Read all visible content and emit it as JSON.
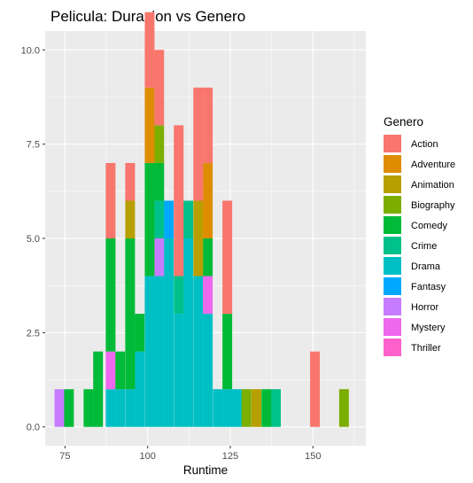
{
  "chart_data": {
    "type": "bar",
    "subtype": "stacked-histogram",
    "title": "Pelicula: Duracion vs Genero",
    "xlabel": "Runtime",
    "ylabel": "",
    "xlim": [
      69,
      166
    ],
    "ylim": [
      -0.5,
      10.5
    ],
    "binwidth": 2.94,
    "x_ticks": [
      75,
      100,
      125,
      150
    ],
    "y_ticks": [
      0,
      2.5,
      5,
      7.5,
      10
    ],
    "y_tick_labels": [
      "0.0",
      "2.5",
      "5.0",
      "7.5",
      "10.0"
    ],
    "grid": true,
    "legend_position": "right",
    "legend_title": "Genero",
    "stack_order": [
      "Drama",
      "Horror",
      "Thriller",
      "Mystery",
      "Fantasy",
      "Crime",
      "Comedy",
      "Biography",
      "Animation",
      "Adventure",
      "Action"
    ],
    "series": [
      {
        "name": "Action",
        "color": "#F8766D",
        "bins": [
          {
            "x": 88.8,
            "count": 2
          },
          {
            "x": 94.7,
            "count": 1
          },
          {
            "x": 100.6,
            "count": 2
          },
          {
            "x": 103.5,
            "count": 2
          },
          {
            "x": 109.4,
            "count": 4
          },
          {
            "x": 115.3,
            "count": 3
          },
          {
            "x": 118.2,
            "count": 2
          },
          {
            "x": 124.1,
            "count": 3
          },
          {
            "x": 150.6,
            "count": 2
          }
        ]
      },
      {
        "name": "Adventure",
        "color": "#DE8C00",
        "bins": [
          {
            "x": 100.6,
            "count": 2
          },
          {
            "x": 118.2,
            "count": 2
          }
        ]
      },
      {
        "name": "Animation",
        "color": "#B79F00",
        "bins": [
          {
            "x": 94.7,
            "count": 1
          },
          {
            "x": 115.3,
            "count": 2
          },
          {
            "x": 132.9,
            "count": 1
          }
        ]
      },
      {
        "name": "Biography",
        "color": "#7CAE00",
        "bins": [
          {
            "x": 103.5,
            "count": 1
          },
          {
            "x": 129.9,
            "count": 1
          },
          {
            "x": 159.4,
            "count": 1
          }
        ]
      },
      {
        "name": "Comedy",
        "color": "#00BA38",
        "bins": [
          {
            "x": 76.2,
            "count": 1
          },
          {
            "x": 82.1,
            "count": 1
          },
          {
            "x": 85.0,
            "count": 2
          },
          {
            "x": 88.8,
            "count": 3
          },
          {
            "x": 91.7,
            "count": 1
          },
          {
            "x": 94.7,
            "count": 4
          },
          {
            "x": 97.6,
            "count": 1
          },
          {
            "x": 100.6,
            "count": 3
          },
          {
            "x": 103.5,
            "count": 1
          },
          {
            "x": 118.2,
            "count": 1
          },
          {
            "x": 124.1,
            "count": 2
          },
          {
            "x": 135.9,
            "count": 1
          }
        ]
      },
      {
        "name": "Crime",
        "color": "#00C08B",
        "bins": [
          {
            "x": 103.5,
            "count": 1
          },
          {
            "x": 109.4,
            "count": 1
          },
          {
            "x": 112.3,
            "count": 1
          },
          {
            "x": 138.8,
            "count": 1
          }
        ]
      },
      {
        "name": "Drama",
        "color": "#00BFC4",
        "bins": [
          {
            "x": 88.8,
            "count": 1
          },
          {
            "x": 91.7,
            "count": 1
          },
          {
            "x": 94.7,
            "count": 1
          },
          {
            "x": 97.6,
            "count": 2
          },
          {
            "x": 100.6,
            "count": 4
          },
          {
            "x": 103.5,
            "count": 4
          },
          {
            "x": 106.4,
            "count": 5
          },
          {
            "x": 109.4,
            "count": 3
          },
          {
            "x": 112.3,
            "count": 5
          },
          {
            "x": 115.3,
            "count": 4
          },
          {
            "x": 118.2,
            "count": 3
          },
          {
            "x": 121.2,
            "count": 1
          },
          {
            "x": 124.1,
            "count": 1
          },
          {
            "x": 127.0,
            "count": 1
          }
        ]
      },
      {
        "name": "Fantasy",
        "color": "#00A9FF",
        "bins": [
          {
            "x": 106.4,
            "count": 1
          }
        ]
      },
      {
        "name": "Horror",
        "color": "#C77CFF",
        "bins": [
          {
            "x": 73.3,
            "count": 1
          },
          {
            "x": 103.5,
            "count": 1
          }
        ]
      },
      {
        "name": "Mystery",
        "color": "#ED68ED",
        "bins": [
          {
            "x": 88.8,
            "count": 1
          },
          {
            "x": 118.2,
            "count": 1
          }
        ]
      },
      {
        "name": "Thriller",
        "color": "#FF61CC",
        "bins": []
      }
    ]
  }
}
